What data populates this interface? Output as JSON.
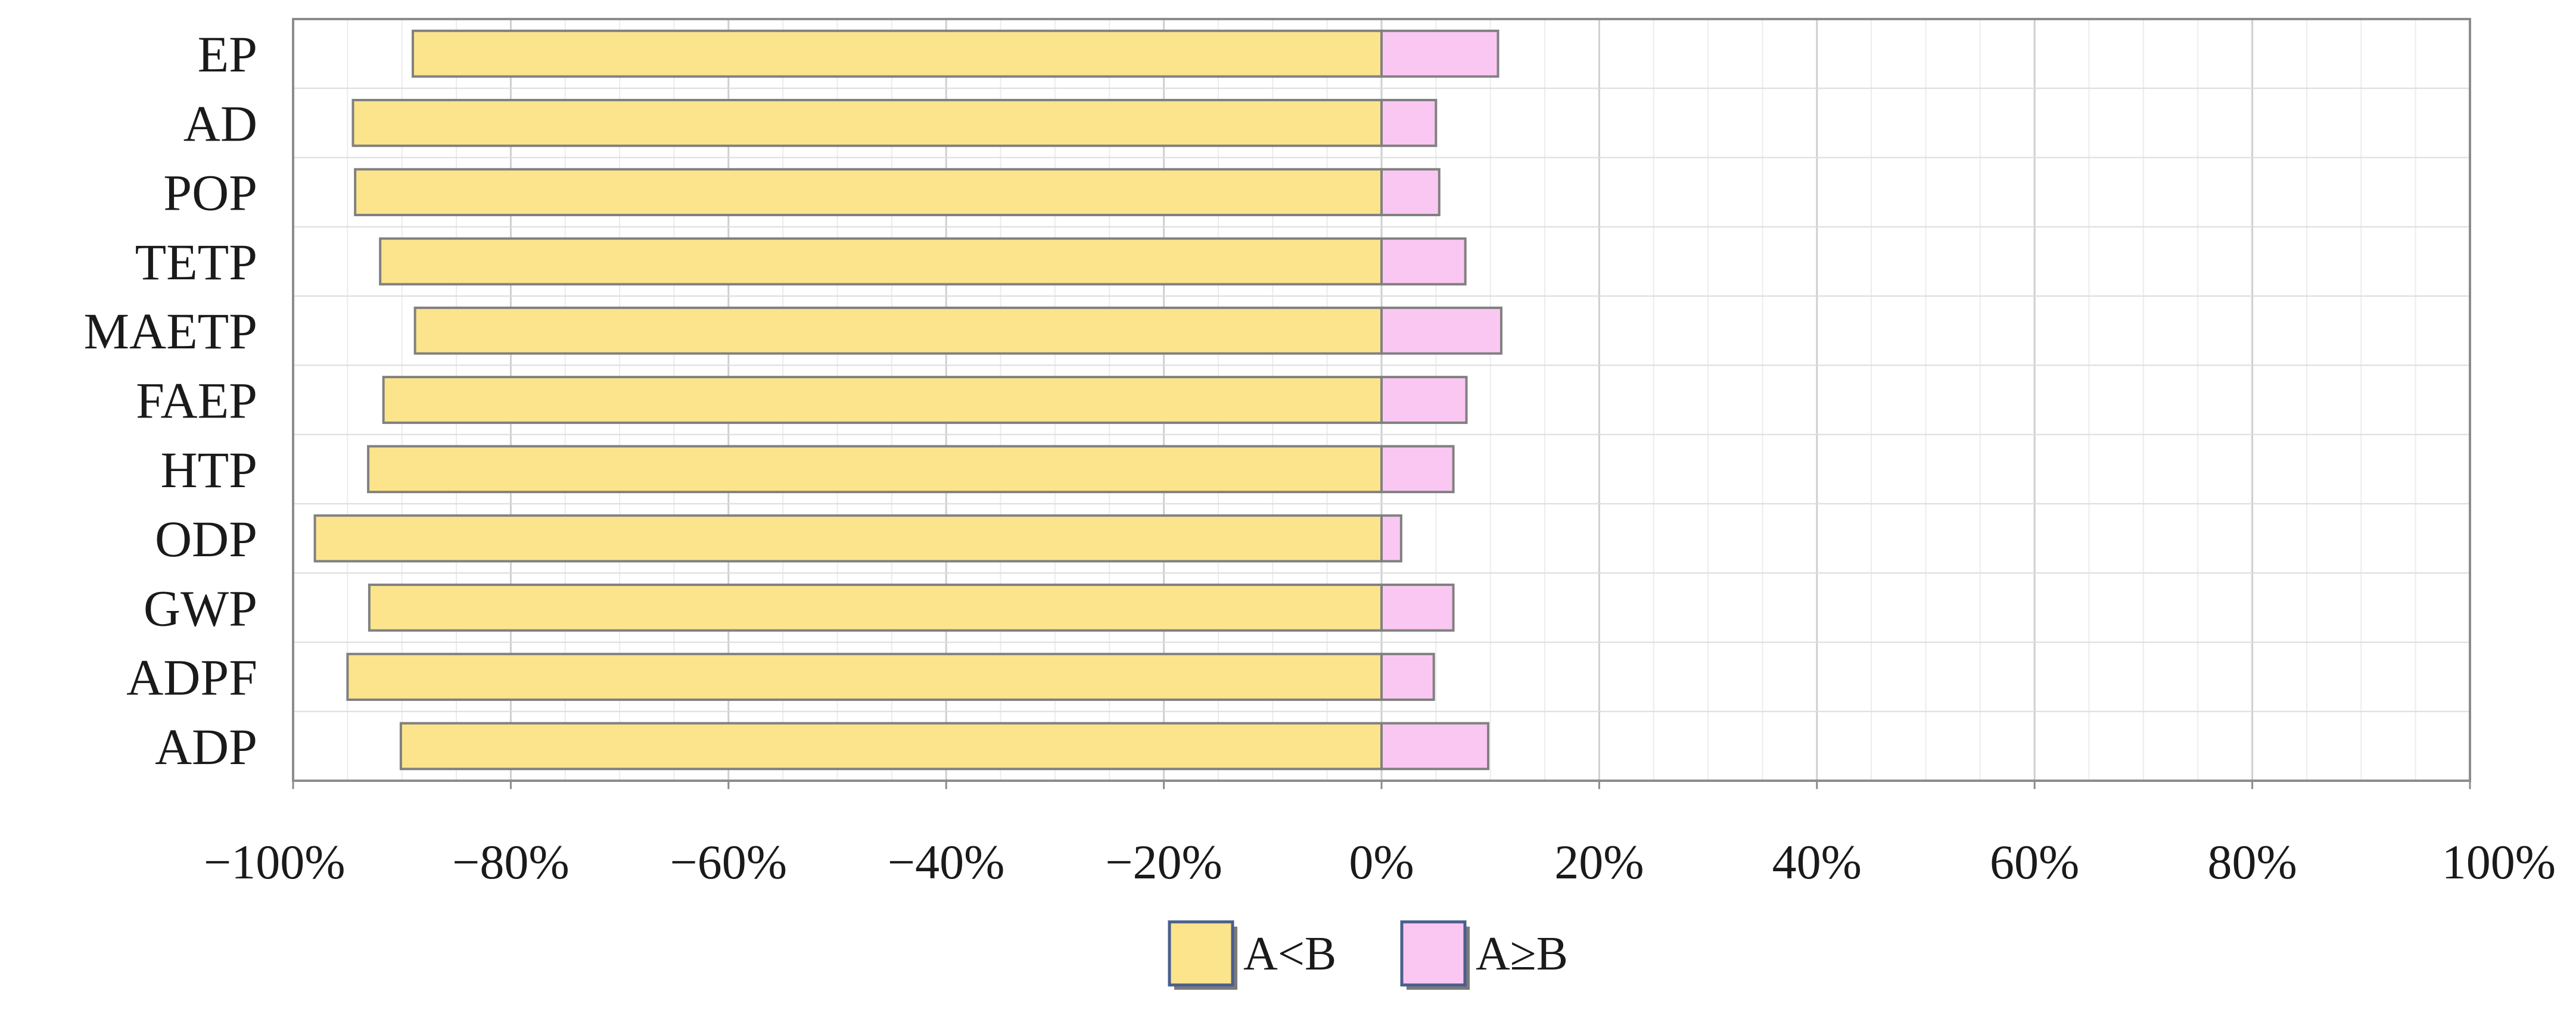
{
  "chart_data": {
    "type": "bar",
    "orientation": "horizontal",
    "stacked": true,
    "categories": [
      "EP",
      "AD",
      "POP",
      "TETP",
      "MAETP",
      "FAEP",
      "HTP",
      "ODP",
      "GWP",
      "ADPF",
      "ADP"
    ],
    "series": [
      {
        "name": "A<B",
        "color": "#fce48c",
        "values": [
          -89,
          -94.5,
          -94.3,
          -92,
          -88.8,
          -91.7,
          -93.1,
          -98,
          -93,
          -95,
          -90.1
        ]
      },
      {
        "name": "A≥B",
        "color": "#fac7f2",
        "values": [
          10.7,
          5,
          5.3,
          7.7,
          11,
          7.8,
          6.6,
          1.8,
          6.6,
          4.8,
          9.8
        ]
      }
    ],
    "xlim": [
      -100,
      100
    ],
    "xticks": [
      -100,
      -80,
      -60,
      -40,
      -20,
      0,
      20,
      40,
      60,
      80,
      100
    ],
    "xtick_labels": [
      "−100%",
      "−80%",
      "−60%",
      "−40%",
      "−20%",
      "0%",
      "20%",
      "40%",
      "60%",
      "80%",
      "100%"
    ],
    "grid": true,
    "legend_position": "bottom-center",
    "bar_stroke": "#808080",
    "grid_color": "#d9d9d9"
  }
}
